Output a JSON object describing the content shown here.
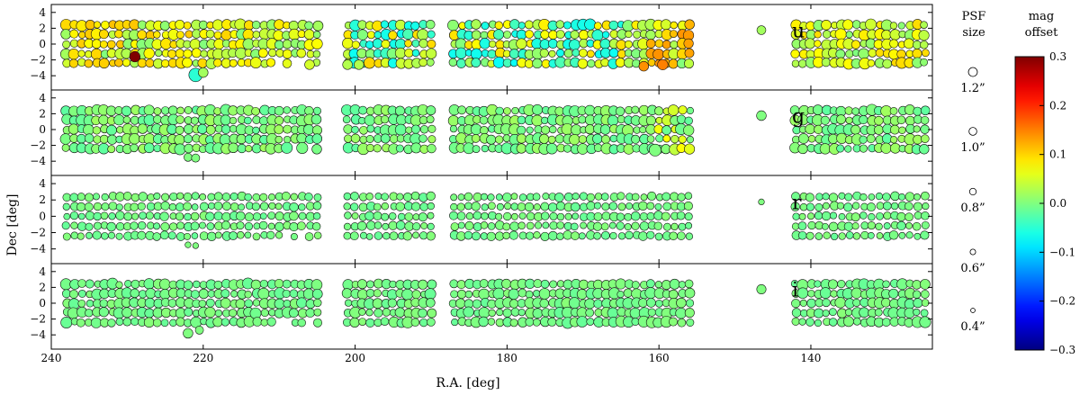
{
  "chart_data": {
    "type": "scatter",
    "xlabel": "R.A. [deg]",
    "ylabel": "Dec [deg]",
    "xlim": [
      240,
      124
    ],
    "ylim": [
      -5.8,
      5
    ],
    "x_ticks": [
      240,
      220,
      200,
      180,
      160,
      140
    ],
    "y_ticks": [
      4,
      2,
      0,
      -2,
      -4
    ],
    "panels": [
      {
        "band": "u",
        "key_marker": {
          "psf_size": 0.9,
          "offset": 0.02
        }
      },
      {
        "band": "g",
        "key_marker": {
          "psf_size": 1.0,
          "offset": 0.0
        }
      },
      {
        "band": "r",
        "key_marker": {
          "psf_size": 0.5,
          "offset": 0.0
        }
      },
      {
        "band": "i",
        "key_marker": {
          "psf_size": 0.95,
          "offset": 0.0
        }
      }
    ],
    "grid_dec_rows": [
      2.4,
      1.2,
      0.0,
      -1.2,
      -2.4
    ],
    "grid_ra_step": 1.0,
    "ra_segments": [
      [
        238.0,
        155.5
      ],
      [
        142.0,
        125.0
      ]
    ],
    "ra_gaps": [
      [
        204.0,
        201.5
      ],
      [
        189.0,
        187.5
      ]
    ],
    "extra_points": [
      {
        "band": "u",
        "ra": 229.0,
        "dec": -1.6,
        "psf_size": 1.1,
        "offset": 0.3
      },
      {
        "band": "u",
        "ra": 221.0,
        "dec": -3.9,
        "psf_size": 1.5,
        "offset": -0.05
      },
      {
        "band": "u",
        "ra": 220.0,
        "dec": -3.6,
        "psf_size": 1.0,
        "offset": 0.02
      },
      {
        "band": "u",
        "ra": 206.0,
        "dec": -2.6,
        "psf_size": 1.0,
        "offset": 0.05
      },
      {
        "band": "u",
        "ra": 201.0,
        "dec": -2.6,
        "psf_size": 1.0,
        "offset": 0.03
      },
      {
        "band": "u",
        "ra": 199.5,
        "dec": -2.6,
        "psf_size": 1.0,
        "offset": 0.03
      },
      {
        "band": "u",
        "ra": 159.5,
        "dec": -2.6,
        "psf_size": 1.1,
        "offset": 0.15
      },
      {
        "band": "u",
        "ra": 162.0,
        "dec": -2.8,
        "psf_size": 1.0,
        "offset": 0.14
      },
      {
        "band": "g",
        "ra": 222.0,
        "dec": -3.5,
        "psf_size": 0.8,
        "offset": 0.0
      },
      {
        "band": "g",
        "ra": 221.0,
        "dec": -3.6,
        "psf_size": 0.8,
        "offset": 0.0
      },
      {
        "band": "g",
        "ra": 160.5,
        "dec": -2.6,
        "psf_size": 1.3,
        "offset": 0.0
      },
      {
        "band": "r",
        "ra": 222.0,
        "dec": -3.5,
        "psf_size": 0.5,
        "offset": 0.0
      },
      {
        "band": "r",
        "ra": 221.0,
        "dec": -3.6,
        "psf_size": 0.5,
        "offset": 0.0
      },
      {
        "band": "i",
        "ra": 222.0,
        "dec": -3.8,
        "psf_size": 1.0,
        "offset": 0.0
      },
      {
        "band": "i",
        "ra": 220.5,
        "dec": -3.4,
        "psf_size": 0.8,
        "offset": 0.0
      }
    ],
    "band_offset_profiles": {
      "u": {
        "base": 0.05,
        "amp": 0.05,
        "blue_zone": [
          [
            200,
            165,
            -0.03
          ]
        ],
        "yellow_zone": [
          [
            238,
            222,
            0.09
          ],
          [
            162,
            156,
            0.12
          ]
        ]
      },
      "g": {
        "base": 0.0,
        "amp": 0.02,
        "blue_zone": [],
        "yellow_zone": [
          [
            160,
            156,
            0.05
          ]
        ]
      },
      "r": {
        "base": -0.005,
        "amp": 0.01,
        "blue_zone": [],
        "yellow_zone": []
      },
      "i": {
        "base": -0.005,
        "amp": 0.01,
        "blue_zone": [],
        "yellow_zone": []
      }
    },
    "psf_legend": {
      "title_line1": "PSF",
      "title_line2": "size",
      "items": [
        {
          "psf_size": 1.2,
          "label": "1.2”"
        },
        {
          "psf_size": 1.0,
          "label": "1.0”"
        },
        {
          "psf_size": 0.8,
          "label": "0.8”"
        },
        {
          "psf_size": 0.6,
          "label": "0.6”"
        },
        {
          "psf_size": 0.4,
          "label": "0.4”"
        }
      ]
    },
    "colorbar": {
      "title_line1": "mag",
      "title_line2": "offset",
      "range": [
        -0.3,
        0.3
      ],
      "ticks": [
        0.3,
        0.2,
        0.1,
        0.0,
        -0.1,
        -0.2,
        -0.3
      ],
      "tick_labels": [
        "0.3",
        "0.2",
        "0.1",
        "0.0",
        "−0.1",
        "−0.2",
        "−0.3"
      ],
      "colormap": "jet"
    }
  }
}
